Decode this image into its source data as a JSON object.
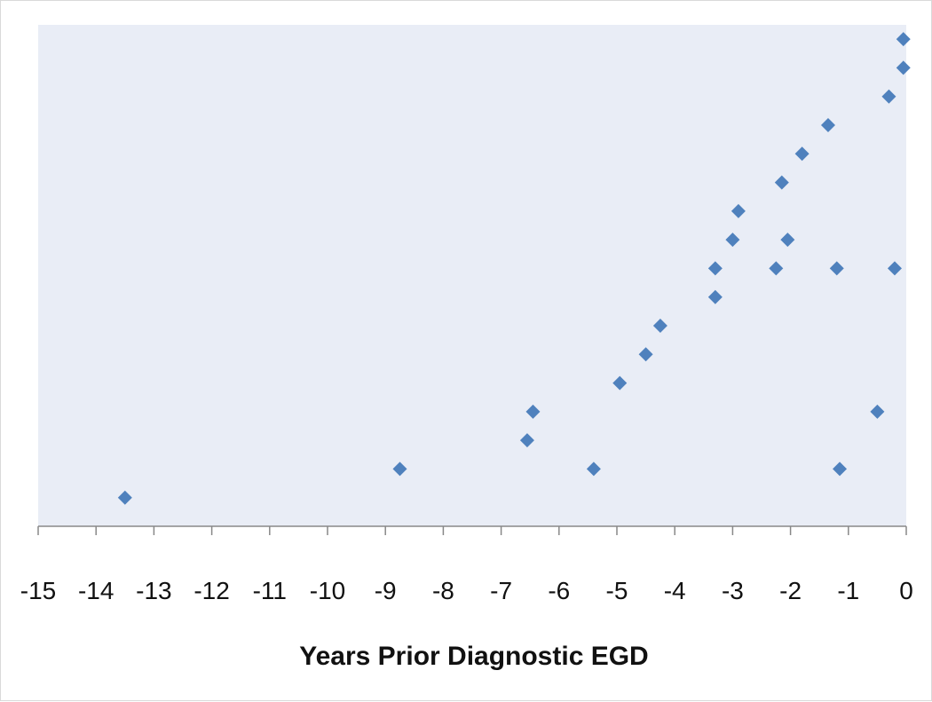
{
  "chart_data": {
    "type": "scatter",
    "title": "",
    "xlabel": "Years Prior Diagnostic EGD",
    "ylabel": "",
    "xlim": [
      -15,
      0
    ],
    "ylim": [
      0,
      17.5
    ],
    "x_ticks": [
      -15,
      -14,
      -13,
      -12,
      -11,
      -10,
      -9,
      -8,
      -7,
      -6,
      -5,
      -4,
      -3,
      -2,
      -1,
      0
    ],
    "x_tick_labels": [
      "-15",
      "-14",
      "-13",
      "-12",
      "-11",
      "-10",
      "-9",
      "-8",
      "-7",
      "-6",
      "-5",
      "-4",
      "-3",
      "-2",
      "-1",
      "0"
    ],
    "grid": false,
    "legend": "none",
    "marker": "diamond",
    "colors": {
      "marker": "#4f81bd",
      "plot_background": "#e9edf6",
      "axis": "#888888"
    },
    "series": [
      {
        "points": [
          {
            "x": -13.5,
            "y": 1
          },
          {
            "x": -8.75,
            "y": 2
          },
          {
            "x": -5.4,
            "y": 2
          },
          {
            "x": -1.15,
            "y": 2
          },
          {
            "x": -6.55,
            "y": 3
          },
          {
            "x": -6.45,
            "y": 4
          },
          {
            "x": -0.5,
            "y": 4
          },
          {
            "x": -4.95,
            "y": 5
          },
          {
            "x": -4.5,
            "y": 6
          },
          {
            "x": -4.25,
            "y": 7
          },
          {
            "x": -3.3,
            "y": 8
          },
          {
            "x": -3.3,
            "y": 9
          },
          {
            "x": -2.25,
            "y": 9
          },
          {
            "x": -1.2,
            "y": 9
          },
          {
            "x": -0.2,
            "y": 9
          },
          {
            "x": -3.0,
            "y": 10
          },
          {
            "x": -2.05,
            "y": 10
          },
          {
            "x": -2.9,
            "y": 11
          },
          {
            "x": -2.15,
            "y": 12
          },
          {
            "x": -1.8,
            "y": 13
          },
          {
            "x": -1.35,
            "y": 14
          },
          {
            "x": -0.3,
            "y": 15
          },
          {
            "x": -0.05,
            "y": 16
          },
          {
            "x": -0.05,
            "y": 17
          }
        ]
      }
    ]
  }
}
